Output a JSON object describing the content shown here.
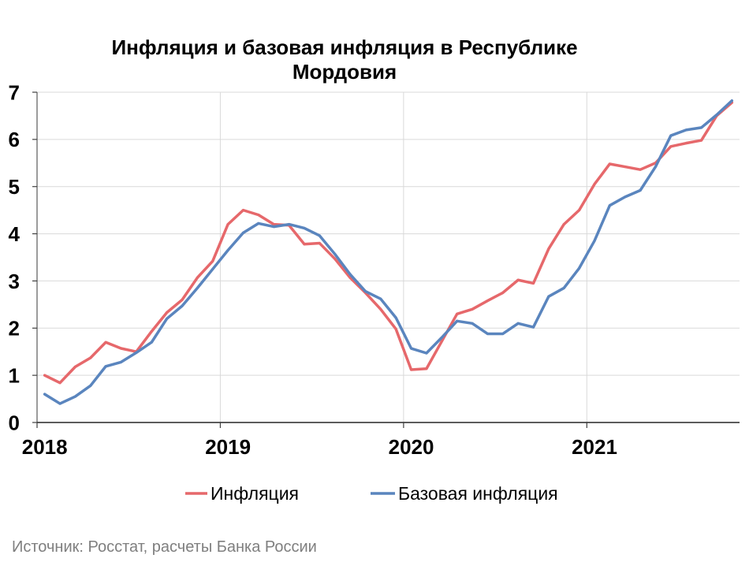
{
  "chart_data": {
    "type": "line",
    "title_lines": [
      "Инфляция и базовая инфляция в Республике",
      "Мордовия"
    ],
    "xlabel": "",
    "ylabel": "",
    "x": [
      "2018-01",
      "2018-02",
      "2018-03",
      "2018-04",
      "2018-05",
      "2018-06",
      "2018-07",
      "2018-08",
      "2018-09",
      "2018-10",
      "2018-11",
      "2018-12",
      "2019-01",
      "2019-02",
      "2019-03",
      "2019-04",
      "2019-05",
      "2019-06",
      "2019-07",
      "2019-08",
      "2019-09",
      "2019-10",
      "2019-11",
      "2019-12",
      "2020-01",
      "2020-02",
      "2020-03",
      "2020-04",
      "2020-05",
      "2020-06",
      "2020-07",
      "2020-08",
      "2020-09",
      "2020-10",
      "2020-11",
      "2020-12",
      "2021-01",
      "2021-02",
      "2021-03",
      "2021-04",
      "2021-05",
      "2021-06",
      "2021-07",
      "2021-08",
      "2021-09",
      "2021-10"
    ],
    "x_tick_labels": [
      "2018",
      "2019",
      "2020",
      "2021"
    ],
    "ylim": [
      0,
      7
    ],
    "y_ticks": [
      0,
      1,
      2,
      3,
      4,
      5,
      6,
      7
    ],
    "grid": true,
    "legend_position": "bottom",
    "series": [
      {
        "name": "Инфляция",
        "color": "#E6686B",
        "values": [
          1.0,
          0.84,
          1.18,
          1.37,
          1.7,
          1.57,
          1.5,
          1.93,
          2.33,
          2.6,
          3.07,
          3.42,
          4.2,
          4.5,
          4.4,
          4.2,
          4.18,
          3.78,
          3.8,
          3.47,
          3.07,
          2.75,
          2.4,
          1.98,
          1.12,
          1.14,
          1.72,
          2.3,
          2.4,
          2.58,
          2.75,
          3.02,
          2.95,
          3.68,
          4.2,
          4.5,
          5.05,
          5.48,
          5.42,
          5.36,
          5.5,
          5.85,
          5.92,
          5.98,
          6.5,
          6.78
        ]
      },
      {
        "name": "Базовая инфляция",
        "color": "#5A85BE",
        "values": [
          0.6,
          0.4,
          0.55,
          0.78,
          1.19,
          1.28,
          1.48,
          1.7,
          2.2,
          2.47,
          2.85,
          3.25,
          3.65,
          4.02,
          4.22,
          4.15,
          4.2,
          4.12,
          3.96,
          3.57,
          3.14,
          2.78,
          2.62,
          2.22,
          1.57,
          1.47,
          1.8,
          2.15,
          2.1,
          1.88,
          1.88,
          2.1,
          2.02,
          2.67,
          2.85,
          3.27,
          3.85,
          4.6,
          4.78,
          4.92,
          5.42,
          6.08,
          6.2,
          6.25,
          6.52,
          6.82
        ]
      }
    ]
  },
  "source": "Источник: Росстат, расчеты Банка России"
}
